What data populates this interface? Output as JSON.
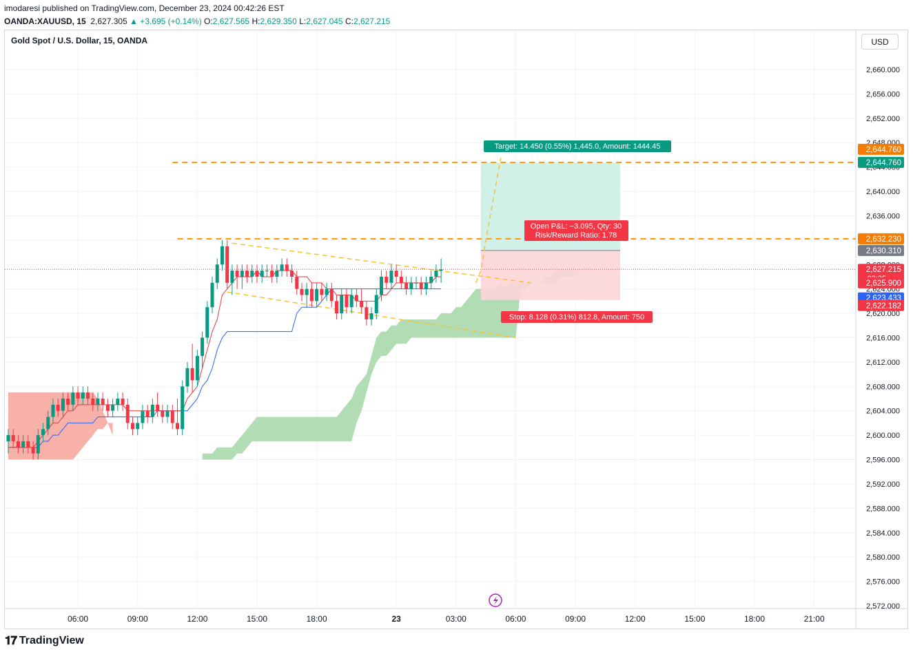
{
  "header": {
    "publisher_line": "imodaresi published on TradingView.com, December 23, 2024 00:42:26 EST",
    "symbol": "OANDA:XAUUSD, 15",
    "last": "2,627.305",
    "change": "▲ +3.695 (+0.14%)",
    "o_label": "O:",
    "o_value": "2,627.565",
    "h_label": "H:",
    "h_value": "2,629.350",
    "l_label": "L:",
    "l_value": "2,627.045",
    "c_label": "C:",
    "c_value": "2,627.215"
  },
  "legend_title": "Gold Spot / U.S. Dollar, 15, OANDA",
  "currency_button": "USD",
  "footer": {
    "logo_icon": "tv-logo-icon",
    "brand": "TradingView"
  },
  "chart_data": {
    "type": "candlestick",
    "ylim": [
      2570.5,
      2663.5
    ],
    "y_ticks": [
      "2,660.000",
      "2,656.000",
      "2,652.000",
      "2,648.000",
      "2,644.000",
      "2,640.000",
      "2,636.000",
      "2,632.000",
      "2,628.000",
      "2,624.000",
      "2,620.000",
      "2,616.000",
      "2,612.000",
      "2,608.000",
      "2,604.000",
      "2,600.000",
      "2,596.000",
      "2,592.000",
      "2,588.000",
      "2,584.000",
      "2,580.000",
      "2,576.000",
      "2,572.000"
    ],
    "y_tick_values": [
      2660,
      2656,
      2652,
      2648,
      2644,
      2640,
      2636,
      2632,
      2628,
      2624,
      2620,
      2616,
      2612,
      2608,
      2604,
      2600,
      2596,
      2592,
      2588,
      2584,
      2580,
      2576,
      2572
    ],
    "x_ticks": [
      {
        "label": "06:00",
        "bar": 14
      },
      {
        "label": "09:00",
        "bar": 26
      },
      {
        "label": "12:00",
        "bar": 38
      },
      {
        "label": "15:00",
        "bar": 50
      },
      {
        "label": "18:00",
        "bar": 62
      },
      {
        "label": "23",
        "bar": 78
      },
      {
        "label": "03:00",
        "bar": 90
      },
      {
        "label": "06:00",
        "bar": 102
      },
      {
        "label": "09:00",
        "bar": 114
      },
      {
        "label": "12:00",
        "bar": 126
      },
      {
        "label": "15:00",
        "bar": 138
      },
      {
        "label": "18:00",
        "bar": 150
      },
      {
        "label": "21:00",
        "bar": 162
      }
    ],
    "candles": [
      [
        2599,
        2601,
        2597,
        2600
      ],
      [
        2600,
        2601,
        2598,
        2599
      ],
      [
        2599,
        2600,
        2597,
        2598
      ],
      [
        2598,
        2600,
        2597,
        2599
      ],
      [
        2599,
        2600,
        2597,
        2598
      ],
      [
        2598,
        2599,
        2596,
        2597
      ],
      [
        2597,
        2601,
        2596,
        2600
      ],
      [
        2600,
        2602,
        2599,
        2601
      ],
      [
        2601,
        2604,
        2600,
        2603
      ],
      [
        2603,
        2606,
        2602,
        2605
      ],
      [
        2605,
        2606,
        2603,
        2604
      ],
      [
        2604,
        2607,
        2603,
        2606
      ],
      [
        2606,
        2607,
        2604,
        2605
      ],
      [
        2605,
        2608,
        2604,
        2607
      ],
      [
        2607,
        2608,
        2605,
        2606
      ],
      [
        2606,
        2608,
        2605,
        2607
      ],
      [
        2607,
        2608,
        2605,
        2606
      ],
      [
        2606,
        2607,
        2604,
        2605
      ],
      [
        2605,
        2607,
        2604,
        2606
      ],
      [
        2606,
        2607,
        2604,
        2605
      ],
      [
        2605,
        2606,
        2603,
        2604
      ],
      [
        2604,
        2606,
        2603,
        2605
      ],
      [
        2605,
        2607,
        2604,
        2606
      ],
      [
        2606,
        2607,
        2604,
        2605
      ],
      [
        2605,
        2606,
        2601,
        2602
      ],
      [
        2602,
        2603,
        2600,
        2601
      ],
      [
        2601,
        2603,
        2600,
        2602
      ],
      [
        2602,
        2605,
        2601,
        2604
      ],
      [
        2604,
        2605,
        2602,
        2603
      ],
      [
        2603,
        2606,
        2602,
        2605
      ],
      [
        2605,
        2607,
        2603,
        2604
      ],
      [
        2604,
        2605,
        2602,
        2603
      ],
      [
        2603,
        2605,
        2602,
        2604
      ],
      [
        2604,
        2605,
        2601,
        2602
      ],
      [
        2602,
        2606,
        2600,
        2601
      ],
      [
        2601,
        2609,
        2600,
        2608
      ],
      [
        2608,
        2612,
        2607,
        2611
      ],
      [
        2611,
        2615,
        2607,
        2609
      ],
      [
        2609,
        2614,
        2608,
        2613
      ],
      [
        2613,
        2617,
        2611,
        2616
      ],
      [
        2616,
        2622,
        2615,
        2621
      ],
      [
        2621,
        2626,
        2620,
        2625
      ],
      [
        2625,
        2629,
        2624,
        2628
      ],
      [
        2628,
        2632,
        2627,
        2631
      ],
      [
        2631,
        2632,
        2624,
        2625
      ],
      [
        2625,
        2628,
        2623,
        2627
      ],
      [
        2627,
        2628,
        2624,
        2626
      ],
      [
        2626,
        2628,
        2624,
        2627
      ],
      [
        2627,
        2628,
        2625,
        2626
      ],
      [
        2626,
        2628,
        2625,
        2627
      ],
      [
        2627,
        2628,
        2625,
        2626
      ],
      [
        2626,
        2628,
        2625,
        2627
      ],
      [
        2627,
        2628,
        2626,
        2627
      ],
      [
        2627,
        2628,
        2625,
        2626
      ],
      [
        2626,
        2628,
        2625,
        2627
      ],
      [
        2627,
        2629,
        2626,
        2628
      ],
      [
        2628,
        2629,
        2626,
        2627
      ],
      [
        2627,
        2628,
        2625,
        2626
      ],
      [
        2626,
        2627,
        2623,
        2624
      ],
      [
        2624,
        2625,
        2622,
        2623
      ],
      [
        2623,
        2625,
        2621,
        2624
      ],
      [
        2624,
        2625,
        2621,
        2622
      ],
      [
        2622,
        2625,
        2621,
        2624
      ],
      [
        2624,
        2625,
        2622,
        2623
      ],
      [
        2623,
        2625,
        2622,
        2624
      ],
      [
        2624,
        2625,
        2621,
        2622
      ],
      [
        2622,
        2623,
        2619,
        2620
      ],
      [
        2620,
        2624,
        2619,
        2623
      ],
      [
        2623,
        2624,
        2620,
        2621
      ],
      [
        2621,
        2624,
        2620,
        2623
      ],
      [
        2623,
        2624,
        2621,
        2622
      ],
      [
        2622,
        2624,
        2620,
        2621
      ],
      [
        2621,
        2622,
        2618,
        2619
      ],
      [
        2619,
        2621,
        2618,
        2620
      ],
      [
        2620,
        2624,
        2619,
        2623
      ],
      [
        2623,
        2627,
        2622,
        2626
      ],
      [
        2626,
        2627,
        2624,
        2625
      ],
      [
        2625,
        2628,
        2624,
        2627
      ],
      [
        2627,
        2628,
        2625,
        2626
      ],
      [
        2626,
        2627,
        2624,
        2625
      ],
      [
        2625,
        2626,
        2623,
        2624
      ],
      [
        2624,
        2626,
        2623,
        2625
      ],
      [
        2625,
        2626,
        2624,
        2625
      ],
      [
        2625,
        2626,
        2623,
        2624
      ],
      [
        2624,
        2626,
        2623,
        2625
      ],
      [
        2625,
        2627,
        2624,
        2626
      ],
      [
        2626,
        2628,
        2625,
        2627
      ],
      [
        2627,
        2629,
        2625,
        2627.2
      ]
    ],
    "tenkan": [
      2598,
      2598,
      2598,
      2598,
      2598,
      2598,
      2599,
      2600,
      2601,
      2602,
      2602,
      2603,
      2604,
      2604,
      2605,
      2605,
      2605,
      2605,
      2605,
      2605,
      2605,
      2605,
      2605,
      2605,
      2604,
      2604,
      2604,
      2604,
      2604,
      2604,
      2604,
      2604,
      2604,
      2604,
      2604,
      2604,
      2606,
      2607,
      2608,
      2611,
      2614,
      2617,
      2619,
      2623,
      2624,
      2625,
      2626,
      2626,
      2626,
      2626,
      2627,
      2626,
      2626,
      2626,
      2627,
      2627,
      2627,
      2627,
      2626,
      2626,
      2626,
      2625,
      2625,
      2625,
      2624,
      2624,
      2623,
      2623,
      2623,
      2623,
      2622,
      2622,
      2622,
      2622,
      2622,
      2623,
      2623,
      2624,
      2625,
      2625,
      2625,
      2625,
      2625,
      2625,
      2625,
      2625,
      2626,
      2626
    ],
    "kijun": [
      2598,
      2598,
      2598,
      2598,
      2598,
      2598,
      2598,
      2599,
      2599,
      2600,
      2600,
      2601,
      2602,
      2602,
      2602,
      2602,
      2602,
      2602,
      2603,
      2603,
      2603,
      2603,
      2603,
      2603,
      2603,
      2603,
      2603,
      2603,
      2603,
      2603,
      2604,
      2604,
      2604,
      2604,
      2604,
      2604,
      2604,
      2605,
      2606,
      2608,
      2609,
      2611,
      2614,
      2616,
      2617,
      2617,
      2617,
      2617,
      2617,
      2617,
      2617,
      2617,
      2617,
      2617,
      2617,
      2617,
      2617,
      2617,
      2620,
      2621,
      2621,
      2621,
      2621,
      2622,
      2623,
      2624,
      2624,
      2624,
      2624,
      2624,
      2624,
      2624,
      2624,
      2624,
      2624,
      2624,
      2624,
      2624,
      2624,
      2624,
      2624,
      2624,
      2624,
      2624,
      2624,
      2624,
      2624,
      2624
    ],
    "cloud_green": {
      "start": 39,
      "span_a": [
        2597,
        2597,
        2597,
        2598,
        2598,
        2598,
        2598,
        2599,
        2600,
        2601,
        2602,
        2603,
        2603,
        2603,
        2603,
        2603,
        2603,
        2603,
        2603,
        2603,
        2603,
        2603,
        2603,
        2603,
        2603,
        2603,
        2603,
        2603,
        2604,
        2605,
        2606,
        2608,
        2609,
        2610,
        2613,
        2616,
        2617,
        2617,
        2618,
        2618,
        2619,
        2619,
        2619,
        2619,
        2619,
        2619,
        2619,
        2619,
        2620,
        2620,
        2620,
        2621,
        2621,
        2622,
        2623,
        2624,
        2624,
        2624,
        2624,
        2624,
        2625,
        2624,
        2625,
        2625,
        2625,
        2625,
        2625,
        2625,
        2625,
        2626,
        2626,
        2627,
        2627,
        2627,
        2627,
        2627,
        2627,
        2627,
        2627
      ],
      "span_b": [
        2596,
        2596,
        2596,
        2596,
        2596,
        2596,
        2596,
        2597,
        2597,
        2598,
        2599,
        2599,
        2599,
        2599,
        2599,
        2599,
        2599,
        2599,
        2599,
        2599,
        2599,
        2599,
        2599,
        2599,
        2599,
        2599,
        2599,
        2599,
        2599,
        2599,
        2599,
        2602,
        2604,
        2607,
        2610,
        2612,
        2613,
        2613,
        2614,
        2615,
        2615,
        2615,
        2616,
        2616,
        2616,
        2616,
        2616,
        2616,
        2616,
        2616,
        2616,
        2616,
        2616,
        2616,
        2616,
        2616,
        2616,
        2616,
        2616,
        2616,
        2616,
        2616,
        2616,
        2616,
        2624,
        2624,
        2625,
        2625,
        2625,
        2625,
        2625,
        2625,
        2626,
        2626,
        2626,
        2626,
        2627,
        2627,
        2627
      ]
    },
    "cloud_red": {
      "start": 0,
      "span_a": [
        2596,
        2596,
        2596,
        2596,
        2596,
        2596,
        2596,
        2596,
        2596,
        2596,
        2596,
        2596,
        2596,
        2596,
        2597,
        2598,
        2599,
        2600,
        2601,
        2601,
        2602,
        2602
      ],
      "span_b": [
        2607,
        2607,
        2607,
        2607,
        2607,
        2607,
        2607,
        2607,
        2607,
        2607,
        2607,
        2607,
        2607,
        2607,
        2607,
        2607,
        2607,
        2607,
        2606,
        2604,
        2602,
        2600
      ]
    },
    "position": {
      "entry": 2630.31,
      "target": 2644.76,
      "stop": 2622.182,
      "start_bar": 95,
      "end_bar": 123,
      "target_label": "Target: 14.450 (0.55%) 1,445.0, Amount: 1444.45",
      "pnl_line1": "Open P&L: −3.095, Qty: 30",
      "pnl_line2": "Risk/Reward Ratio: 1.78",
      "stop_label": "Stop: 8.128 (0.31%) 812.8, Amount: 750"
    },
    "lines": {
      "level_2644": 2644.76,
      "level_2632": 2632.23
    },
    "price_labels": [
      {
        "text": "2,644.760",
        "value": 2644.76,
        "color": "#f57c00",
        "offset": -19
      },
      {
        "text": "2,644.760",
        "value": 2644.76,
        "color": "#089981",
        "offset": 0
      },
      {
        "text": "2,632.230",
        "value": 2632.23,
        "color": "#f57c00",
        "offset": 0
      },
      {
        "text": "2,630.310",
        "value": 2630.31,
        "color": "#787b86",
        "offset": 0
      },
      {
        "text": "2,627.215",
        "value": 2627.215,
        "color": "#f23645",
        "offset": 0,
        "sub": "02:35"
      },
      {
        "text": "2,625.900",
        "value": 2625.9,
        "color": "#f23645",
        "offset": 8
      },
      {
        "text": "2,623.433",
        "value": 2623.433,
        "color": "#2962ff",
        "offset": 8
      },
      {
        "text": "2,622.182",
        "value": 2622.182,
        "color": "#f23645",
        "offset": 8
      }
    ],
    "colors": {
      "up": "#089981",
      "down": "#f23645",
      "tenkan": "#e53935",
      "kijun": "#2962ff",
      "cloud_green": "#a5d6a7",
      "cloud_red": "#f7a39a",
      "dashed": "#ff9800",
      "wedge": "#fbc02d",
      "target_fill": "#cbeee6",
      "stop_fill": "#fcd5d7",
      "grid": "#f0f3fa"
    }
  }
}
